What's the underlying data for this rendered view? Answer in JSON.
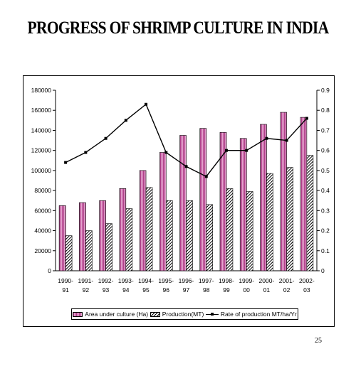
{
  "slide": {
    "title": "PROGRESS OF SHRIMP CULTURE IN INDIA",
    "page_number": "25"
  },
  "colors": {
    "area_bar": "#b0408a",
    "area_bar_light": "#e6a3cf",
    "production_hatch": "#000000",
    "rate_line": "#000000"
  },
  "chart_data": {
    "type": "bar",
    "categories": [
      [
        "1990-",
        "91"
      ],
      [
        "1991-",
        "92"
      ],
      [
        "1992-",
        "93"
      ],
      [
        "1993-",
        "94"
      ],
      [
        "1994-",
        "95"
      ],
      [
        "1995-",
        "96"
      ],
      [
        "1996-",
        "97"
      ],
      [
        "1997-",
        "98"
      ],
      [
        "1998-",
        "99"
      ],
      [
        "1999-",
        "00"
      ],
      [
        "2000-",
        "01"
      ],
      [
        "2001-",
        "02"
      ],
      [
        "2002-",
        "03"
      ]
    ],
    "series": [
      {
        "name": "Area under culture (Ha)",
        "kind": "bar",
        "axis": "left",
        "values": [
          65000,
          68000,
          70000,
          82000,
          100000,
          118000,
          135000,
          142000,
          138000,
          132000,
          146000,
          158000,
          153000
        ]
      },
      {
        "name": "Production(MT)",
        "kind": "bar",
        "axis": "left",
        "values": [
          35000,
          40000,
          47000,
          62000,
          83000,
          70000,
          70000,
          66000,
          82000,
          79000,
          97000,
          103000,
          115000
        ]
      },
      {
        "name": "Rate of production MT/ha/Yr",
        "kind": "line",
        "axis": "right",
        "values": [
          0.54,
          0.59,
          0.66,
          0.75,
          0.83,
          0.59,
          0.52,
          0.47,
          0.6,
          0.6,
          0.66,
          0.65,
          0.76
        ]
      }
    ],
    "y_left": {
      "min": 0,
      "max": 180000,
      "step": 20000,
      "ticks": [
        "0",
        "20000",
        "40000",
        "60000",
        "80000",
        "100000",
        "120000",
        "140000",
        "160000",
        "180000"
      ]
    },
    "y_right": {
      "min": 0,
      "max": 0.9,
      "step": 0.1,
      "ticks": [
        "0",
        "0.1",
        "0.2",
        "0.3",
        "0.4",
        "0.5",
        "0.6",
        "0.7",
        "0.8",
        "0.9"
      ]
    },
    "grid": false,
    "legend_position": "bottom"
  }
}
